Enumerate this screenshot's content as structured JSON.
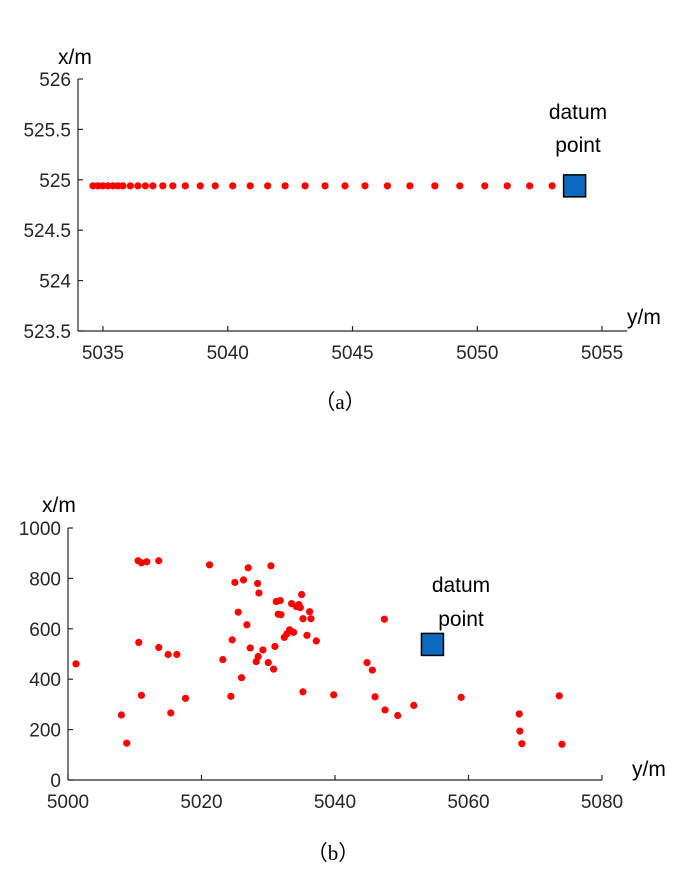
{
  "chart_data": [
    {
      "type": "scatter",
      "caption": "（a）",
      "xlabel": "y/m",
      "ylabel": "x/m",
      "xlim": [
        5034,
        5056
      ],
      "ylim": [
        523.5,
        526
      ],
      "xticks": [
        5035,
        5040,
        5045,
        5050,
        5055
      ],
      "yticks": [
        523.5,
        524,
        524.5,
        525,
        525.5,
        526
      ],
      "xtick_labels": [
        "5035",
        "5040",
        "5045",
        "5050",
        "5055"
      ],
      "ytick_labels": [
        "523.5",
        "524",
        "524.5",
        "525",
        "525.5",
        "526"
      ],
      "grid": false,
      "series": [
        {
          "color": "#ff0000",
          "points": [
            [
              5034.6,
              524.94
            ],
            [
              5034.8,
              524.94
            ],
            [
              5035.0,
              524.94
            ],
            [
              5035.2,
              524.94
            ],
            [
              5035.4,
              524.94
            ],
            [
              5035.6,
              524.94
            ],
            [
              5035.8,
              524.94
            ],
            [
              5036.1,
              524.94
            ],
            [
              5036.4,
              524.94
            ],
            [
              5036.7,
              524.94
            ],
            [
              5037.0,
              524.94
            ],
            [
              5037.4,
              524.94
            ],
            [
              5037.8,
              524.94
            ],
            [
              5038.3,
              524.94
            ],
            [
              5038.9,
              524.94
            ],
            [
              5039.5,
              524.94
            ],
            [
              5040.2,
              524.94
            ],
            [
              5040.9,
              524.94
            ],
            [
              5041.6,
              524.94
            ],
            [
              5042.3,
              524.94
            ],
            [
              5043.1,
              524.94
            ],
            [
              5043.9,
              524.94
            ],
            [
              5044.7,
              524.94
            ],
            [
              5045.5,
              524.94
            ],
            [
              5046.4,
              524.94
            ],
            [
              5047.3,
              524.94
            ],
            [
              5048.3,
              524.94
            ],
            [
              5049.3,
              524.94
            ],
            [
              5050.3,
              524.94
            ],
            [
              5051.2,
              524.94
            ],
            [
              5052.1,
              524.94
            ],
            [
              5053.0,
              524.94
            ]
          ]
        }
      ],
      "datum": {
        "x": 5053.9,
        "y": 524.94,
        "color": "#0c6bbf",
        "label_line1": "datum",
        "label_line2": "point"
      }
    },
    {
      "type": "scatter",
      "caption": "（b）",
      "xlabel": "y/m",
      "ylabel": "x/m",
      "xlim": [
        5000,
        5080
      ],
      "ylim": [
        0,
        1000
      ],
      "xticks": [
        5000,
        5020,
        5040,
        5060,
        5080
      ],
      "yticks": [
        0,
        200,
        400,
        600,
        800,
        1000
      ],
      "xtick_labels": [
        "5000",
        "5020",
        "5040",
        "5060",
        "5080"
      ],
      "ytick_labels": [
        "0",
        "200",
        "400",
        "600",
        "800",
        "1000"
      ],
      "grid": false,
      "series": [
        {
          "color": "#ff0000",
          "points": [
            [
              5001.2,
              461
            ],
            [
              5008.0,
              258
            ],
            [
              5008.8,
              146
            ],
            [
              5010.5,
              870
            ],
            [
              5010.6,
              546
            ],
            [
              5011.0,
              336
            ],
            [
              5011.0,
              862
            ],
            [
              5011.8,
              866
            ],
            [
              5013.6,
              870
            ],
            [
              5013.6,
              526
            ],
            [
              5015.0,
              498
            ],
            [
              5015.4,
              266
            ],
            [
              5016.3,
              498
            ],
            [
              5017.6,
              324
            ],
            [
              5021.2,
              854
            ],
            [
              5023.2,
              478
            ],
            [
              5024.4,
              332
            ],
            [
              5024.6,
              556
            ],
            [
              5025.0,
              784
            ],
            [
              5025.5,
              666
            ],
            [
              5026.0,
              406
            ],
            [
              5026.3,
              794
            ],
            [
              5026.8,
              616
            ],
            [
              5027.0,
              842
            ],
            [
              5027.3,
              524
            ],
            [
              5028.2,
              470
            ],
            [
              5028.4,
              780
            ],
            [
              5028.5,
              490
            ],
            [
              5028.6,
              742
            ],
            [
              5029.2,
              516
            ],
            [
              5030.0,
              466
            ],
            [
              5030.4,
              850
            ],
            [
              5030.8,
              440
            ],
            [
              5031.0,
              530
            ],
            [
              5031.2,
              708
            ],
            [
              5031.5,
              658
            ],
            [
              5031.8,
              712
            ],
            [
              5031.9,
              656
            ],
            [
              5032.4,
              566
            ],
            [
              5032.8,
              580
            ],
            [
              5033.2,
              596
            ],
            [
              5033.8,
              586
            ],
            [
              5033.5,
              700
            ],
            [
              5034.2,
              688
            ],
            [
              5034.6,
              696
            ],
            [
              5034.8,
              684
            ],
            [
              5035.0,
              736
            ],
            [
              5035.2,
              350
            ],
            [
              5035.2,
              640
            ],
            [
              5035.8,
              574
            ],
            [
              5036.2,
              668
            ],
            [
              5036.4,
              640
            ],
            [
              5037.2,
              552
            ],
            [
              5039.8,
              338
            ],
            [
              5044.8,
              466
            ],
            [
              5045.6,
              436
            ],
            [
              5046.0,
              330
            ],
            [
              5047.4,
              638
            ],
            [
              5047.5,
              278
            ],
            [
              5049.4,
              256
            ],
            [
              5051.8,
              296
            ],
            [
              5058.9,
              328
            ],
            [
              5067.6,
              262
            ],
            [
              5067.7,
              194
            ],
            [
              5068.0,
              144
            ],
            [
              5073.6,
              334
            ],
            [
              5074.0,
              142
            ]
          ]
        }
      ],
      "datum": {
        "x": 5054.6,
        "y": 538,
        "color": "#0c6bbf",
        "label_line1": "datum",
        "label_line2": "point"
      }
    }
  ]
}
